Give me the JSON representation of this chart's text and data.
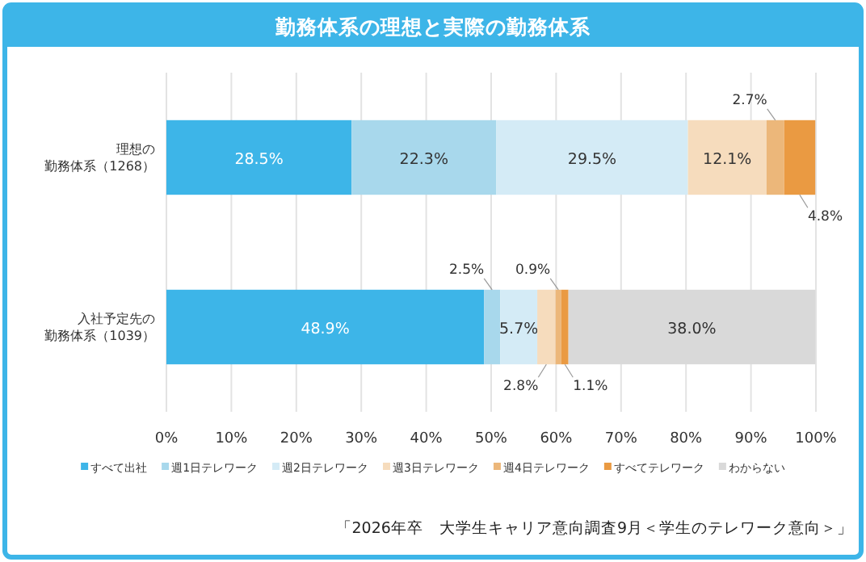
{
  "chart_data": {
    "type": "bar",
    "orientation": "horizontal",
    "stacked": true,
    "title": "勤務体系の理想と実際の勤務体系",
    "categories": [
      "理想の勤務体系（1268）",
      "入社予定先の勤務体系（1039）"
    ],
    "series": [
      {
        "name": "すべて出社",
        "color": "#3db5e8",
        "values": [
          28.5,
          48.9
        ],
        "value_labels": [
          "28.5%",
          "48.9%"
        ]
      },
      {
        "name": "週1日テレワーク",
        "color": "#a8d8ec",
        "values": [
          22.3,
          2.5
        ],
        "value_labels": [
          "22.3%",
          "2.5%"
        ]
      },
      {
        "name": "週2日テレワーク",
        "color": "#d4ebf6",
        "values": [
          29.5,
          5.7
        ],
        "value_labels": [
          "29.5%",
          "5.7%"
        ]
      },
      {
        "name": "週3日テレワーク",
        "color": "#f6dcbd",
        "values": [
          12.1,
          2.8
        ],
        "value_labels": [
          "12.1%",
          "2.8%"
        ]
      },
      {
        "name": "週4日テレワーク",
        "color": "#ecb77a",
        "values": [
          2.7,
          0.9
        ],
        "value_labels": [
          "2.7%",
          "0.9%"
        ]
      },
      {
        "name": "すべてテレワーク",
        "color": "#ea9a42",
        "values": [
          4.8,
          1.1
        ],
        "value_labels": [
          "4.8%",
          "1.1%"
        ]
      },
      {
        "name": "わからない",
        "color": "#d9d9d9",
        "values": [
          null,
          38.0
        ],
        "value_labels": [
          null,
          "38.0%"
        ]
      }
    ],
    "xlim": [
      0,
      100
    ],
    "xticks": [
      {
        "value": 0,
        "label": "0%"
      },
      {
        "value": 10,
        "label": "10%"
      },
      {
        "value": 20,
        "label": "20%"
      },
      {
        "value": 30,
        "label": "30%"
      },
      {
        "value": 40,
        "label": "40%"
      },
      {
        "value": 50,
        "label": "50%"
      },
      {
        "value": 60,
        "label": "60%"
      },
      {
        "value": 70,
        "label": "70%"
      },
      {
        "value": 80,
        "label": "80%"
      },
      {
        "value": 90,
        "label": "90%"
      },
      {
        "value": 100,
        "label": "100%"
      }
    ],
    "grid": "x",
    "legend": "bottom",
    "annotations": [
      "「2026年卒　大学生キャリア意向調査9月＜学生のテレワーク意向＞」"
    ]
  }
}
